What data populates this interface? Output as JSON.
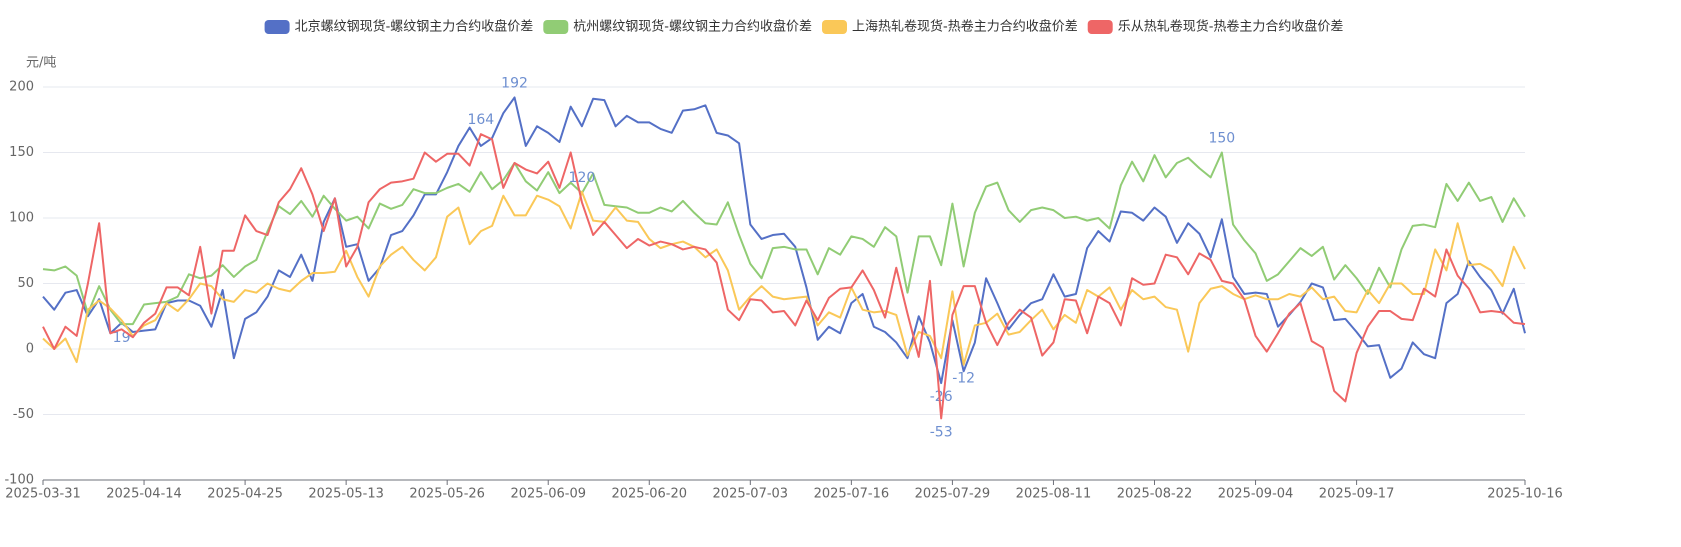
{
  "chart_data": {
    "type": "line",
    "y_label": "元/吨",
    "ylim": [
      -100,
      200
    ],
    "yticks": [
      -100,
      -50,
      0,
      50,
      100,
      150,
      200
    ],
    "grid": true,
    "legend": "top",
    "mark_points": [
      "max",
      "min"
    ],
    "categories": [
      "2025-03-31",
      null,
      null,
      null,
      null,
      null,
      null,
      null,
      null,
      "2025-04-14",
      null,
      null,
      null,
      null,
      null,
      null,
      null,
      null,
      "2025-04-25",
      null,
      null,
      null,
      null,
      null,
      null,
      null,
      null,
      "2025-05-13",
      null,
      null,
      null,
      null,
      null,
      null,
      null,
      null,
      "2025-05-26",
      null,
      null,
      null,
      null,
      null,
      null,
      null,
      null,
      "2025-06-09",
      null,
      null,
      null,
      null,
      null,
      null,
      null,
      null,
      "2025-06-20",
      null,
      null,
      null,
      null,
      null,
      null,
      null,
      null,
      "2025-07-03",
      null,
      null,
      null,
      null,
      null,
      null,
      null,
      null,
      "2025-07-16",
      null,
      null,
      null,
      null,
      null,
      null,
      null,
      null,
      "2025-07-29",
      null,
      null,
      null,
      null,
      null,
      null,
      null,
      null,
      "2025-08-11",
      null,
      null,
      null,
      null,
      null,
      null,
      null,
      null,
      "2025-08-22",
      null,
      null,
      null,
      null,
      null,
      null,
      null,
      null,
      "2025-09-04",
      null,
      null,
      null,
      null,
      null,
      null,
      null,
      null,
      "2025-09-17",
      null,
      null,
      null,
      null,
      null,
      null,
      null,
      null,
      null,
      null,
      null,
      null,
      null,
      null,
      "2025-10-16"
    ],
    "series": [
      {
        "name": "北京螺纹钢现货-螺纹钢主力合约收盘价差",
        "color": "#5470c6",
        "values": [
          40,
          30,
          43,
          45,
          25,
          38,
          12,
          20,
          13,
          14,
          15,
          35,
          37,
          37,
          33,
          17,
          45,
          -7,
          23,
          28,
          40,
          60,
          55,
          72,
          52,
          97,
          115,
          78,
          80,
          52,
          62,
          87,
          90,
          102,
          118,
          118,
          135,
          155,
          169,
          155,
          161,
          180,
          192,
          155,
          170,
          165,
          158,
          185,
          170,
          191,
          190,
          170,
          178,
          173,
          173,
          168,
          165,
          182,
          183,
          186,
          165,
          163,
          157,
          95,
          84,
          87,
          88,
          78,
          47,
          7,
          17,
          12,
          35,
          42,
          17,
          13,
          5,
          -7,
          25,
          5,
          -26,
          22,
          -17,
          5,
          54,
          35,
          15,
          26,
          35,
          38,
          57,
          40,
          42,
          77,
          90,
          82,
          105,
          104,
          98,
          108,
          101,
          81,
          96,
          88,
          70,
          99,
          55,
          42,
          43,
          42,
          17,
          26,
          36,
          50,
          47,
          22,
          23,
          13,
          2,
          3,
          -22,
          -15,
          5,
          -4,
          -7,
          35,
          42,
          67,
          55,
          45,
          27,
          46,
          12
        ]
      },
      {
        "name": "杭州螺纹钢现货-螺纹钢主力合约收盘价差",
        "color": "#91cc75",
        "values": [
          61,
          60,
          63,
          56,
          27,
          48,
          30,
          19,
          19,
          34,
          35,
          36,
          40,
          57,
          54,
          56,
          64,
          55,
          63,
          68,
          90,
          109,
          103,
          113,
          101,
          117,
          107,
          98,
          101,
          92,
          111,
          107,
          110,
          122,
          119,
          119,
          123,
          126,
          120,
          135,
          122,
          129,
          142,
          128,
          121,
          135,
          119,
          127,
          119,
          134,
          110,
          109,
          108,
          104,
          104,
          108,
          105,
          113,
          104,
          96,
          95,
          112,
          87,
          65,
          54,
          77,
          78,
          76,
          76,
          57,
          77,
          72,
          86,
          84,
          78,
          93,
          86,
          43,
          86,
          86,
          64,
          111,
          63,
          104,
          124,
          127,
          106,
          97,
          106,
          108,
          106,
          100,
          101,
          98,
          100,
          92,
          125,
          143,
          128,
          148,
          131,
          142,
          146,
          138,
          131,
          150,
          95,
          83,
          73,
          52,
          57,
          67,
          77,
          71,
          78,
          53,
          64,
          54,
          42,
          62,
          47,
          76,
          94,
          95,
          93,
          126,
          113,
          127,
          113,
          116,
          97,
          115,
          101
        ]
      },
      {
        "name": "上海热轧卷现货-热卷主力合约收盘价差",
        "color": "#fac858",
        "values": [
          8,
          0,
          8,
          -10,
          30,
          37,
          31,
          22,
          10,
          18,
          22,
          35,
          29,
          38,
          50,
          48,
          38,
          36,
          45,
          43,
          50,
          46,
          44,
          52,
          58,
          58,
          59,
          75,
          55,
          40,
          63,
          72,
          78,
          68,
          60,
          70,
          101,
          108,
          80,
          90,
          94,
          117,
          102,
          102,
          117,
          114,
          109,
          92,
          120,
          98,
          97,
          108,
          98,
          97,
          84,
          77,
          80,
          82,
          78,
          70,
          76,
          60,
          30,
          40,
          48,
          40,
          38,
          39,
          40,
          18,
          28,
          24,
          47,
          30,
          28,
          29,
          26,
          -5,
          13,
          10,
          -7,
          44,
          -12,
          18,
          20,
          27,
          11,
          13,
          22,
          30,
          15,
          26,
          20,
          45,
          40,
          47,
          30,
          45,
          38,
          40,
          32,
          30,
          -2,
          35,
          46,
          48,
          42,
          38,
          41,
          38,
          38,
          42,
          40,
          47,
          38,
          40,
          29,
          28,
          45,
          35,
          50,
          50,
          42,
          42,
          76,
          60,
          96,
          64,
          65,
          60,
          48,
          78,
          61
        ]
      },
      {
        "name": "乐从热轧卷现货-热卷主力合约收盘价差",
        "color": "#ee6666",
        "values": [
          17,
          0,
          17,
          10,
          50,
          96,
          12,
          15,
          9,
          20,
          27,
          47,
          47,
          41,
          78,
          27,
          75,
          75,
          102,
          90,
          87,
          112,
          122,
          138,
          118,
          90,
          115,
          63,
          78,
          112,
          122,
          127,
          128,
          130,
          150,
          143,
          149,
          149,
          140,
          164,
          160,
          123,
          142,
          137,
          134,
          143,
          123,
          150,
          112,
          87,
          97,
          87,
          77,
          84,
          79,
          82,
          80,
          76,
          78,
          76,
          66,
          30,
          22,
          38,
          37,
          28,
          29,
          18,
          37,
          22,
          39,
          46,
          47,
          60,
          45,
          24,
          62,
          27,
          -6,
          52,
          -53,
          26,
          48,
          48,
          20,
          3,
          20,
          30,
          24,
          -5,
          5,
          38,
          37,
          12,
          40,
          35,
          18,
          54,
          49,
          50,
          72,
          70,
          57,
          73,
          68,
          52,
          50,
          38,
          10,
          -2,
          12,
          27,
          35,
          6,
          1,
          -32,
          -40,
          -3,
          17,
          29,
          29,
          23,
          22,
          46,
          40,
          76,
          56,
          46,
          28,
          29,
          28,
          20,
          19
        ]
      }
    ]
  }
}
